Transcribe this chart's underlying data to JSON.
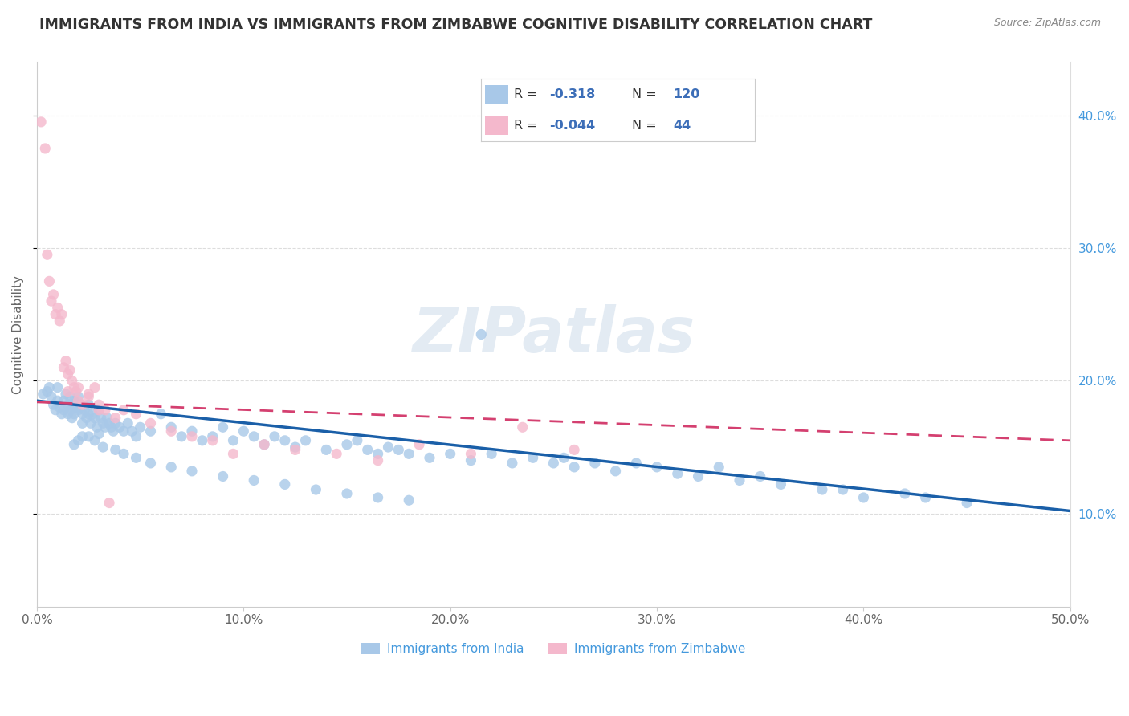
{
  "title": "IMMIGRANTS FROM INDIA VS IMMIGRANTS FROM ZIMBABWE COGNITIVE DISABILITY CORRELATION CHART",
  "source": "Source: ZipAtlas.com",
  "ylabel": "Cognitive Disability",
  "xlim": [
    0.0,
    0.5
  ],
  "ylim": [
    0.03,
    0.44
  ],
  "xtick_labels": [
    "0.0%",
    "10.0%",
    "20.0%",
    "30.0%",
    "40.0%",
    "50.0%"
  ],
  "xtick_vals": [
    0.0,
    0.1,
    0.2,
    0.3,
    0.4,
    0.5
  ],
  "ytick_labels_right": [
    "10.0%",
    "20.0%",
    "30.0%",
    "40.0%"
  ],
  "ytick_vals_right": [
    0.1,
    0.2,
    0.3,
    0.4
  ],
  "india_color": "#a8c8e8",
  "zimbabwe_color": "#f4b8cc",
  "india_line_color": "#1a5fa8",
  "zimbabwe_line_color": "#d44070",
  "india_R": -0.318,
  "india_N": 120,
  "zimbabwe_R": -0.044,
  "zimbabwe_N": 44,
  "india_label": "Immigrants from India",
  "zimbabwe_label": "Immigrants from Zimbabwe",
  "watermark": "ZIPatlas",
  "india_line_x0": 0.0,
  "india_line_y0": 0.185,
  "india_line_x1": 0.5,
  "india_line_y1": 0.102,
  "zim_line_x0": 0.0,
  "zim_line_y0": 0.184,
  "zim_line_x1": 0.5,
  "zim_line_y1": 0.155,
  "india_x": [
    0.003,
    0.005,
    0.006,
    0.007,
    0.008,
    0.009,
    0.01,
    0.01,
    0.011,
    0.012,
    0.013,
    0.013,
    0.014,
    0.015,
    0.015,
    0.016,
    0.016,
    0.017,
    0.017,
    0.018,
    0.018,
    0.019,
    0.02,
    0.02,
    0.021,
    0.022,
    0.022,
    0.023,
    0.024,
    0.025,
    0.025,
    0.026,
    0.027,
    0.028,
    0.029,
    0.03,
    0.031,
    0.032,
    0.033,
    0.034,
    0.035,
    0.036,
    0.037,
    0.038,
    0.04,
    0.042,
    0.044,
    0.046,
    0.048,
    0.05,
    0.055,
    0.06,
    0.065,
    0.07,
    0.075,
    0.08,
    0.085,
    0.09,
    0.095,
    0.1,
    0.105,
    0.11,
    0.115,
    0.12,
    0.125,
    0.13,
    0.14,
    0.15,
    0.155,
    0.16,
    0.165,
    0.17,
    0.175,
    0.18,
    0.19,
    0.2,
    0.21,
    0.215,
    0.22,
    0.23,
    0.24,
    0.25,
    0.255,
    0.26,
    0.27,
    0.28,
    0.29,
    0.3,
    0.31,
    0.32,
    0.33,
    0.34,
    0.35,
    0.36,
    0.38,
    0.39,
    0.4,
    0.42,
    0.43,
    0.45,
    0.03,
    0.025,
    0.02,
    0.018,
    0.022,
    0.028,
    0.032,
    0.038,
    0.042,
    0.048,
    0.055,
    0.065,
    0.075,
    0.09,
    0.105,
    0.12,
    0.135,
    0.15,
    0.165,
    0.18
  ],
  "india_y": [
    0.19,
    0.192,
    0.195,
    0.188,
    0.182,
    0.178,
    0.195,
    0.185,
    0.18,
    0.175,
    0.185,
    0.178,
    0.19,
    0.182,
    0.175,
    0.188,
    0.178,
    0.182,
    0.172,
    0.185,
    0.175,
    0.18,
    0.188,
    0.178,
    0.182,
    0.175,
    0.168,
    0.178,
    0.172,
    0.182,
    0.175,
    0.168,
    0.175,
    0.172,
    0.165,
    0.178,
    0.172,
    0.168,
    0.165,
    0.172,
    0.168,
    0.165,
    0.162,
    0.168,
    0.165,
    0.162,
    0.168,
    0.162,
    0.158,
    0.165,
    0.162,
    0.175,
    0.165,
    0.158,
    0.162,
    0.155,
    0.158,
    0.165,
    0.155,
    0.162,
    0.158,
    0.152,
    0.158,
    0.155,
    0.15,
    0.155,
    0.148,
    0.152,
    0.155,
    0.148,
    0.145,
    0.15,
    0.148,
    0.145,
    0.142,
    0.145,
    0.14,
    0.235,
    0.145,
    0.138,
    0.142,
    0.138,
    0.142,
    0.135,
    0.138,
    0.132,
    0.138,
    0.135,
    0.13,
    0.128,
    0.135,
    0.125,
    0.128,
    0.122,
    0.118,
    0.118,
    0.112,
    0.115,
    0.112,
    0.108,
    0.16,
    0.158,
    0.155,
    0.152,
    0.158,
    0.155,
    0.15,
    0.148,
    0.145,
    0.142,
    0.138,
    0.135,
    0.132,
    0.128,
    0.125,
    0.122,
    0.118,
    0.115,
    0.112,
    0.11
  ],
  "zimbabwe_x": [
    0.002,
    0.004,
    0.005,
    0.006,
    0.007,
    0.008,
    0.009,
    0.01,
    0.011,
    0.012,
    0.013,
    0.014,
    0.015,
    0.016,
    0.017,
    0.018,
    0.019,
    0.02,
    0.022,
    0.025,
    0.028,
    0.03,
    0.033,
    0.038,
    0.042,
    0.048,
    0.055,
    0.065,
    0.075,
    0.085,
    0.095,
    0.11,
    0.125,
    0.145,
    0.165,
    0.185,
    0.21,
    0.235,
    0.26,
    0.015,
    0.02,
    0.025,
    0.03,
    0.035
  ],
  "zimbabwe_y": [
    0.395,
    0.375,
    0.295,
    0.275,
    0.26,
    0.265,
    0.25,
    0.255,
    0.245,
    0.25,
    0.21,
    0.215,
    0.205,
    0.208,
    0.2,
    0.195,
    0.192,
    0.195,
    0.182,
    0.188,
    0.195,
    0.182,
    0.178,
    0.172,
    0.178,
    0.175,
    0.168,
    0.162,
    0.158,
    0.155,
    0.145,
    0.152,
    0.148,
    0.145,
    0.14,
    0.152,
    0.145,
    0.165,
    0.148,
    0.192,
    0.185,
    0.19,
    0.178,
    0.108
  ],
  "grid_color": "#dddddd",
  "background_color": "#ffffff",
  "title_color": "#333333",
  "axis_color": "#666666"
}
